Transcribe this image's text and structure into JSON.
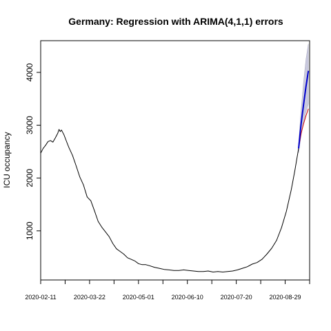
{
  "chart_data": {
    "type": "line",
    "title": "Germany: Regression with ARIMA(4,1,1) errors",
    "xlabel": "",
    "ylabel": "ICU occupancy",
    "xlim": [
      "2020-02-11",
      "2020-09-18"
    ],
    "ylim": [
      70,
      4600
    ],
    "x_tick_labels": [
      "2020-02-11",
      "2020-03-22",
      "2020-05-01",
      "2020-06-10",
      "2020-07-20",
      "2020-08-29"
    ],
    "y_ticks": [
      1000,
      2000,
      3000,
      4000
    ],
    "y_tick_labels": [
      "1000",
      "2000",
      "3000",
      "4000"
    ],
    "grid": false,
    "legend": "none",
    "colors": {
      "observed": "#000000",
      "forecast_mean": "#0000cc",
      "forecast_alt": "#cc0000",
      "interval": "#c0c0d8"
    },
    "series": [
      {
        "values": [
          [
            "2020-02-11",
            2470
          ],
          [
            "2020-02-13",
            2560
          ],
          [
            "2020-02-15",
            2620
          ],
          [
            "2020-02-17",
            2690
          ],
          [
            "2020-02-19",
            2710
          ],
          [
            "2020-02-21",
            2680
          ],
          [
            "2020-02-23",
            2760
          ],
          [
            "2020-02-25",
            2850
          ],
          [
            "2020-02-26",
            2920
          ],
          [
            "2020-02-27",
            2880
          ],
          [
            "2020-02-28",
            2910
          ],
          [
            "2020-03-01",
            2820
          ],
          [
            "2020-03-03",
            2700
          ],
          [
            "2020-03-05",
            2580
          ],
          [
            "2020-03-08",
            2430
          ],
          [
            "2020-03-11",
            2230
          ],
          [
            "2020-03-14",
            2020
          ],
          [
            "2020-03-17",
            1870
          ],
          [
            "2020-03-20",
            1640
          ],
          [
            "2020-03-23",
            1570
          ],
          [
            "2020-03-26",
            1380
          ],
          [
            "2020-03-29",
            1180
          ],
          [
            "2020-04-01",
            1070
          ],
          [
            "2020-04-04",
            980
          ],
          [
            "2020-04-07",
            890
          ],
          [
            "2020-04-10",
            760
          ],
          [
            "2020-04-13",
            660
          ],
          [
            "2020-04-16",
            610
          ],
          [
            "2020-04-19",
            560
          ],
          [
            "2020-04-22",
            490
          ],
          [
            "2020-04-25",
            460
          ],
          [
            "2020-04-28",
            430
          ],
          [
            "2020-05-01",
            380
          ],
          [
            "2020-05-04",
            360
          ],
          [
            "2020-05-07",
            360
          ],
          [
            "2020-05-10",
            340
          ],
          [
            "2020-05-14",
            310
          ],
          [
            "2020-05-18",
            290
          ],
          [
            "2020-05-22",
            270
          ],
          [
            "2020-05-26",
            260
          ],
          [
            "2020-05-30",
            250
          ],
          [
            "2020-06-03",
            250
          ],
          [
            "2020-06-07",
            260
          ],
          [
            "2020-06-11",
            250
          ],
          [
            "2020-06-15",
            240
          ],
          [
            "2020-06-19",
            230
          ],
          [
            "2020-06-23",
            230
          ],
          [
            "2020-06-27",
            240
          ],
          [
            "2020-07-01",
            220
          ],
          [
            "2020-07-05",
            230
          ],
          [
            "2020-07-09",
            220
          ],
          [
            "2020-07-13",
            230
          ],
          [
            "2020-07-17",
            240
          ],
          [
            "2020-07-21",
            260
          ],
          [
            "2020-07-25",
            290
          ],
          [
            "2020-07-29",
            320
          ],
          [
            "2020-08-02",
            370
          ],
          [
            "2020-08-06",
            400
          ],
          [
            "2020-08-10",
            460
          ],
          [
            "2020-08-14",
            560
          ],
          [
            "2020-08-18",
            670
          ],
          [
            "2020-08-22",
            820
          ],
          [
            "2020-08-26",
            1060
          ],
          [
            "2020-08-30",
            1370
          ],
          [
            "2020-09-03",
            1780
          ],
          [
            "2020-09-06",
            2150
          ],
          [
            "2020-09-09",
            2560
          ]
        ]
      },
      {
        "values": [
          [
            "2020-09-09",
            2560
          ],
          [
            "2020-09-11",
            3020
          ],
          [
            "2020-09-13",
            3380
          ],
          [
            "2020-09-15",
            3730
          ],
          [
            "2020-09-17",
            4030
          ]
        ]
      },
      {
        "values": [
          [
            "2020-09-09",
            2560
          ],
          [
            "2020-09-11",
            2840
          ],
          [
            "2020-09-13",
            3020
          ],
          [
            "2020-09-15",
            3180
          ],
          [
            "2020-09-17",
            3310
          ]
        ]
      }
    ],
    "forecast_interval": [
      [
        "2020-09-09",
        2480,
        2650
      ],
      [
        "2020-09-11",
        2800,
        3280
      ],
      [
        "2020-09-13",
        3050,
        3800
      ],
      [
        "2020-09-15",
        3250,
        4250
      ],
      [
        "2020-09-17",
        3400,
        4540
      ]
    ]
  }
}
